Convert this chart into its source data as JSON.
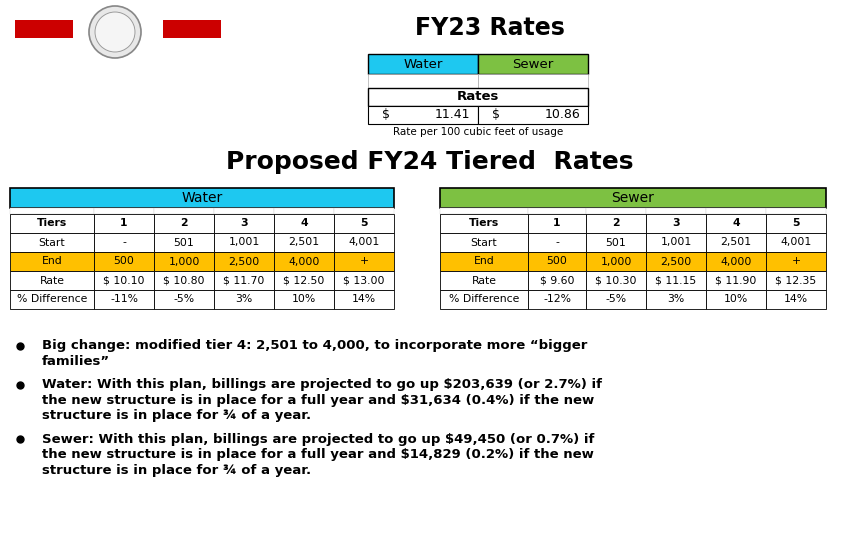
{
  "title_fy23": "FY23 Rates",
  "title_fy24": "Proposed FY24 Tiered  Rates",
  "fy23_water_label": "Water",
  "fy23_sewer_label": "Sewer",
  "fy23_rates_header": "Rates",
  "fy23_water_rate": "11.41",
  "fy23_sewer_rate": "10.86",
  "fy23_footnote": "Rate per 100 cubic feet of usage",
  "water_header_color": "#1EC8F0",
  "sewer_header_color": "#7DC142",
  "yellow_color": "#FFC000",
  "white_color": "#FFFFFF",
  "border_color": "#000000",
  "bg_color": "#FFFFFF",
  "red_bar_color": "#CC0000",
  "water_tiers": [
    "Tiers",
    "1",
    "2",
    "3",
    "4",
    "5"
  ],
  "water_start": [
    "Start",
    "-",
    "501",
    "1,001",
    "2,501",
    "4,001"
  ],
  "water_end": [
    "End",
    "500",
    "1,000",
    "2,500",
    "4,000",
    "+"
  ],
  "water_rate": [
    "Rate",
    "$ 10.10",
    "$ 10.80",
    "$ 11.70",
    "$ 12.50",
    "$ 13.00"
  ],
  "water_diff": [
    "% Difference",
    "-11%",
    "-5%",
    "3%",
    "10%",
    "14%"
  ],
  "sewer_tiers": [
    "Tiers",
    "1",
    "2",
    "3",
    "4",
    "5"
  ],
  "sewer_start": [
    "Start",
    "-",
    "501",
    "1,001",
    "2,501",
    "4,001"
  ],
  "sewer_end": [
    "End",
    "500",
    "1,000",
    "2,500",
    "4,000",
    "+"
  ],
  "sewer_rate": [
    "Rate",
    "$ 9.60",
    "$ 10.30",
    "$ 11.15",
    "$ 11.90",
    "$ 12.35"
  ],
  "sewer_diff": [
    "% Difference",
    "-12%",
    "-5%",
    "3%",
    "10%",
    "14%"
  ],
  "bullet1_line1": "Big change: modified tier 4: 2,501 to 4,000, to incorporate more “bigger",
  "bullet1_line2": "families”",
  "bullet2_line1": "Water: With this plan, billings are projected to go up $203,639 (or 2.7%) if",
  "bullet2_line2": "the new structure is in place for a full year and $31,634 (0.4%) if the new",
  "bullet2_line3": "structure is in place for ¾ of a year.",
  "bullet3_line1": "Sewer: With this plan, billings are projected to go up $49,450 (or 0.7%) if",
  "bullet3_line2": "the new structure is in place for a full year and $14,829 (0.2%) if the new",
  "bullet3_line3": "structure is in place for ¾ of a year."
}
